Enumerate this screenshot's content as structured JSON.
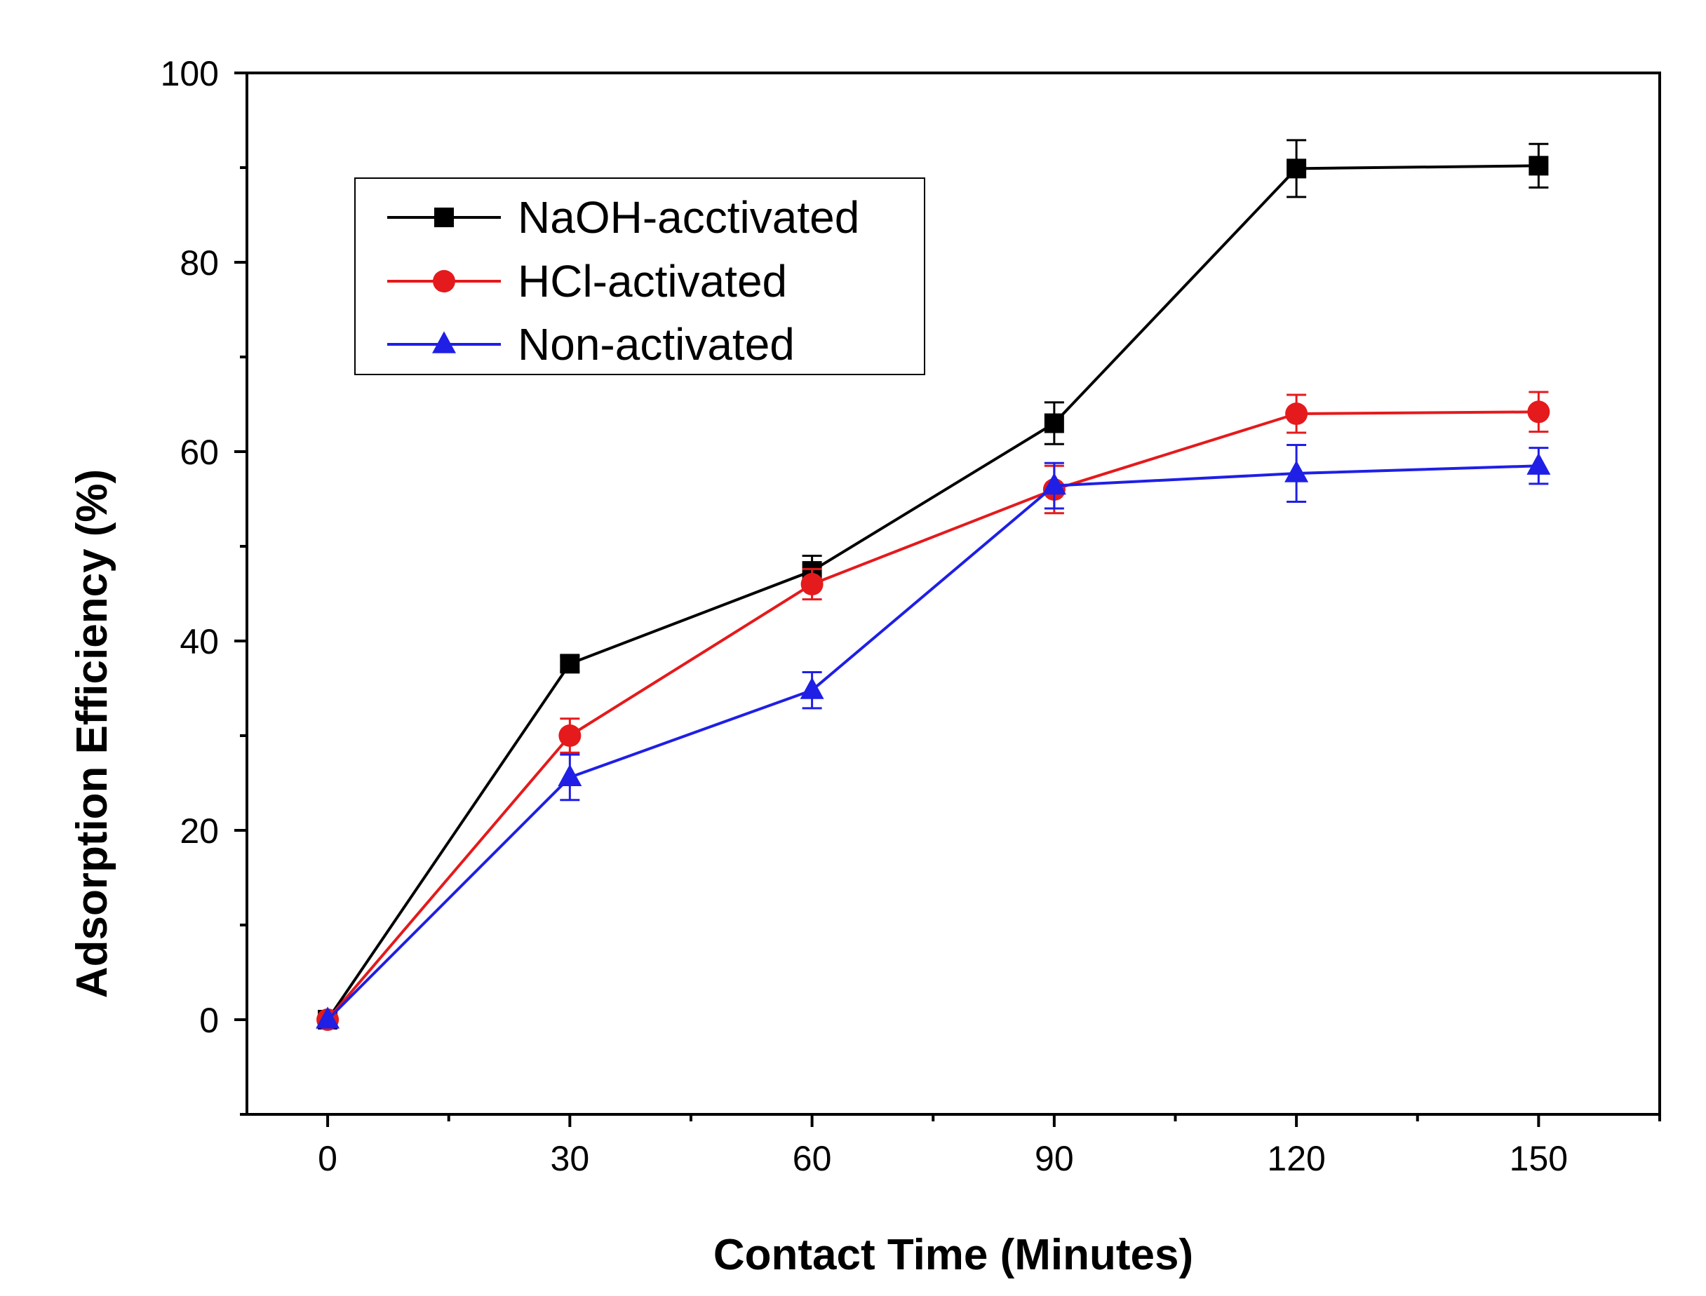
{
  "chart_data": {
    "type": "line",
    "title": "",
    "xlabel": "Contact Time (Minutes)",
    "ylabel": "Adsorption Efficiency (%)",
    "xlim": [
      -10,
      165
    ],
    "ylim": [
      -10,
      100
    ],
    "x_ticks": [
      0,
      30,
      60,
      90,
      120,
      150
    ],
    "x_tick_labels": [
      "0",
      "30",
      "60",
      "90",
      "120",
      "150"
    ],
    "x_minor_ticks": [
      15,
      45,
      75,
      105,
      135,
      165
    ],
    "y_ticks": [
      0,
      20,
      40,
      60,
      80,
      100
    ],
    "y_tick_labels": [
      "0",
      "20",
      "40",
      "60",
      "80",
      "100"
    ],
    "y_minor_ticks": [
      -10,
      10,
      30,
      50,
      70,
      90
    ],
    "grid": false,
    "legend_position": "top-left",
    "x": [
      0,
      30,
      60,
      90,
      120,
      150
    ],
    "series": [
      {
        "name": "NaOH-acctivated",
        "color": "#000000",
        "marker": "square",
        "values": [
          0,
          37.6,
          47.4,
          63.0,
          89.9,
          90.2
        ],
        "errors": [
          0,
          0.8,
          1.6,
          2.2,
          3.0,
          2.3
        ]
      },
      {
        "name": "HCl-activated",
        "color": "#e41a1c",
        "marker": "circle",
        "values": [
          0,
          30.0,
          46.0,
          56.0,
          64.0,
          64.2
        ],
        "errors": [
          0,
          1.8,
          1.6,
          2.5,
          2.0,
          2.1
        ]
      },
      {
        "name": "Non-activated",
        "color": "#1f1fe6",
        "marker": "triangle",
        "values": [
          0,
          25.6,
          34.8,
          56.4,
          57.7,
          58.5
        ],
        "errors": [
          0,
          2.4,
          1.9,
          2.4,
          3.0,
          1.9
        ]
      }
    ]
  }
}
